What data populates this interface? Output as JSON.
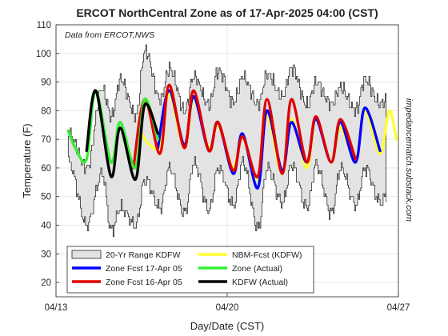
{
  "chart_data": {
    "type": "line",
    "title": "ERCOT NorthCentral Zone as of 17-Apr-2025 04:00 (CST)",
    "subtitle": "Data from ERCOT,NWS",
    "side_note": "impedancematch.substack.com",
    "xlabel": "Day/Date (CST)",
    "ylabel": "Temperature (F)",
    "xlim": [
      "04/13",
      "04/27"
    ],
    "ylim": [
      15,
      110
    ],
    "x_ticks": [
      "04/13",
      "04/20",
      "04/27"
    ],
    "y_ticks": [
      20,
      30,
      40,
      50,
      60,
      70,
      80,
      90,
      100,
      110
    ],
    "grid": true,
    "legend_position": "bottom-left",
    "range_band": {
      "name": "20-Yr Range KDFW",
      "fill": "#e3e3e3",
      "x": [
        "04/13 12:00",
        "04/14 06:00",
        "04/14 21:00",
        "04/15 06:00",
        "04/15 15:00",
        "04/16 06:00",
        "04/16 15:00",
        "04/17 06:00",
        "04/17 15:00",
        "04/18 06:00",
        "04/18 15:00",
        "04/19 06:00",
        "04/19 15:00",
        "04/20 06:00",
        "04/20 15:00",
        "04/21 06:00",
        "04/21 15:00",
        "04/22 06:00",
        "04/22 15:00",
        "04/23 06:00",
        "04/23 15:00",
        "04/24 06:00",
        "04/24 15:00",
        "04/25 06:00",
        "04/25 15:00",
        "04/26 06:00",
        "04/26 12:00"
      ],
      "upper": [
        72,
        60,
        88,
        78,
        91,
        78,
        101,
        84,
        95,
        80,
        92,
        82,
        94,
        83,
        92,
        82,
        93,
        85,
        95,
        82,
        90,
        82,
        88,
        80,
        91,
        82,
        84
      ],
      "lower": [
        62,
        40,
        58,
        38,
        46,
        40,
        56,
        46,
        60,
        44,
        62,
        45,
        60,
        47,
        62,
        39,
        60,
        48,
        61,
        46,
        61,
        44,
        60,
        47,
        60,
        48,
        50
      ]
    },
    "series": [
      {
        "name": "Zone Fcst 17-Apr 05",
        "color": "#0000ff",
        "x": [
          "04/17 04:00",
          "04/17 15:00",
          "04/18 06:00",
          "04/18 15:00",
          "04/19 06:00",
          "04/19 15:00",
          "04/20 06:00",
          "04/20 15:00",
          "04/21 06:00",
          "04/21 15:00",
          "04/22 06:00",
          "04/22 15:00",
          "04/23 06:00",
          "04/23 15:00",
          "04/24 06:00",
          "04/24 15:00",
          "04/25 06:00",
          "04/25 15:00",
          "04/26 06:00"
        ],
        "y": [
          67,
          87,
          68,
          85,
          66,
          76,
          58,
          72,
          53,
          80,
          59,
          76,
          62,
          77,
          62,
          76,
          62,
          81,
          66
        ]
      },
      {
        "name": "Zone Fcst 16-Apr 05",
        "color": "#e00000",
        "x": [
          "04/16 04:00",
          "04/16 15:00",
          "04/17 06:00",
          "04/17 15:00",
          "04/18 06:00",
          "04/18 15:00",
          "04/19 06:00",
          "04/19 15:00",
          "04/20 06:00",
          "04/20 15:00",
          "04/21 06:00",
          "04/21 15:00",
          "04/22 06:00",
          "04/22 15:00",
          "04/23 06:00",
          "04/23 15:00",
          "04/24 06:00",
          "04/24 15:00",
          "04/25 06:00"
        ],
        "y": [
          60,
          84,
          65,
          89,
          67,
          87,
          66,
          76,
          59,
          71,
          57,
          84,
          58,
          84,
          62,
          78,
          62,
          77,
          63
        ]
      },
      {
        "name": "NBM-Fcst (KDFW)",
        "color": "#ffff30",
        "x": [
          "04/16 12:00",
          "04/16 20:00",
          "04/17 06:00",
          "04/17 15:00",
          "04/18 06:00",
          "04/18 15:00",
          "04/19 06:00",
          "04/19 15:00",
          "04/20 06:00",
          "04/20 15:00",
          "04/21 06:00",
          "04/21 15:00",
          "04/22 06:00",
          "04/22 15:00",
          "04/23 06:00",
          "04/23 15:00",
          "04/24 06:00",
          "04/24 15:00",
          "04/25 06:00",
          "04/25 15:00",
          "04/26 06:00",
          "04/26 15:00",
          "04/26 22:00"
        ],
        "y": [
          72,
          68,
          68,
          86,
          67,
          84,
          67,
          75,
          60,
          71,
          56,
          78,
          58,
          77,
          60,
          77,
          62,
          74,
          63,
          80,
          65,
          80,
          70
        ]
      },
      {
        "name": "Zone (Actual)",
        "color": "#33ee33",
        "x": [
          "04/13 12:00",
          "04/13 19:00",
          "04/14 06:00",
          "04/14 15:00",
          "04/15 06:00",
          "04/15 15:00",
          "04/16 06:00",
          "04/16 15:00",
          "04/17 04:00"
        ],
        "y": [
          73,
          67,
          63,
          87,
          62,
          76,
          60,
          84,
          70
        ]
      },
      {
        "name": "KDFW (Actual)",
        "color": "#000000",
        "x": [
          "04/14 06:00",
          "04/14 15:00",
          "04/15 06:00",
          "04/15 15:00",
          "04/16 06:00",
          "04/16 15:00",
          "04/17 04:00"
        ],
        "y": [
          66,
          87,
          57,
          74,
          56,
          82,
          72
        ]
      }
    ]
  }
}
